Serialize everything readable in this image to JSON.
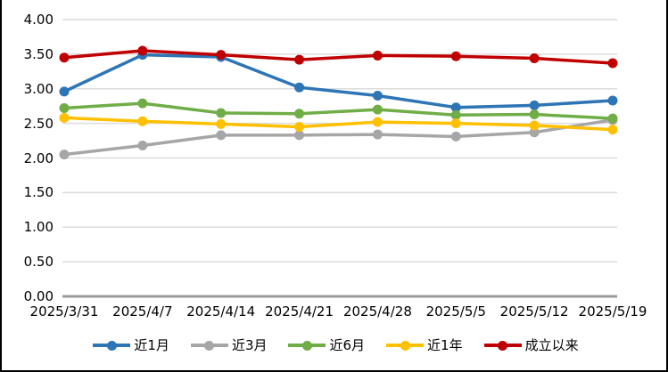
{
  "chart_data": {
    "type": "line",
    "title": "",
    "categories": [
      "2025/3/31",
      "2025/4/7",
      "2025/4/14",
      "2025/4/21",
      "2025/4/28",
      "2025/5/5",
      "2025/5/12",
      "2025/5/19"
    ],
    "series": [
      {
        "name": "近1月",
        "color": "#2E75B6",
        "values": [
          2.96,
          3.49,
          3.46,
          3.02,
          2.9,
          2.73,
          2.76,
          2.83
        ]
      },
      {
        "name": "近3月",
        "color": "#A6A6A6",
        "values": [
          2.05,
          2.18,
          2.33,
          2.33,
          2.34,
          2.31,
          2.37,
          2.55
        ]
      },
      {
        "name": "近6月",
        "color": "#70AD47",
        "values": [
          2.72,
          2.79,
          2.65,
          2.64,
          2.7,
          2.62,
          2.63,
          2.57
        ]
      },
      {
        "name": "近1年",
        "color": "#FFC000",
        "values": [
          2.58,
          2.53,
          2.49,
          2.45,
          2.52,
          2.5,
          2.47,
          2.41
        ]
      },
      {
        "name": "成立以来",
        "color": "#C00000",
        "values": [
          3.45,
          3.55,
          3.49,
          3.42,
          3.48,
          3.47,
          3.44,
          3.37
        ]
      }
    ],
    "y_axis": {
      "min": 0,
      "max": 4,
      "step": 0.5,
      "tick_labels": [
        "4.00",
        "3.50",
        "3.00",
        "2.50",
        "2.00",
        "1.50",
        "1.00",
        "0.50",
        "0.00"
      ]
    },
    "xlabel": "",
    "ylabel": "",
    "grid": true,
    "legend_position": "bottom",
    "marker": "circle"
  },
  "colors": {
    "background": "#FFFFFF",
    "gridline": "#DCDCDC",
    "axis_line": "#9B9B9B",
    "text": "#000000",
    "border": "#000000"
  }
}
